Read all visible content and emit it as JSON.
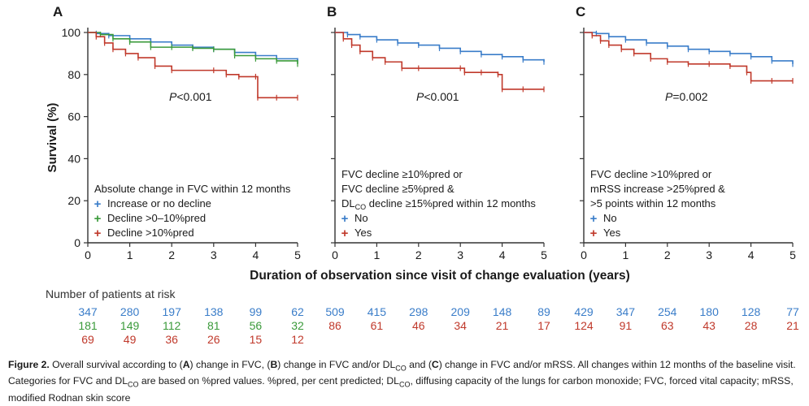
{
  "colors": {
    "blue": "#3a7dc9",
    "green": "#3a9a3a",
    "red": "#c0392b",
    "axis": "#333333"
  },
  "chart_data": [
    {
      "type": "line",
      "panel_label": "A",
      "ylabel": "Survival (%)",
      "xlim": [
        0,
        5
      ],
      "ylim": [
        0,
        100
      ],
      "x_ticks": [
        "0",
        "1",
        "2",
        "3",
        "4",
        "5"
      ],
      "y_ticks": [
        "0",
        "20",
        "40",
        "60",
        "80",
        "100"
      ],
      "grid": false,
      "annotation": {
        "italic": "P",
        "rest": "<0.001"
      },
      "legend_title_lines": [
        "Absolute change in FVC within 12 months"
      ],
      "legend_placement": "bottom-left",
      "series": [
        {
          "name": "Increase or no decline",
          "color": "#3a7dc9",
          "x": [
            0,
            0.2,
            0.5,
            1.0,
            1.5,
            2.0,
            2.5,
            3.0,
            3.5,
            4.0,
            4.5,
            5.0
          ],
          "y": [
            100,
            99.5,
            98.5,
            97,
            95.5,
            94,
            93,
            92,
            90.5,
            89,
            87.5,
            86.5
          ]
        },
        {
          "name": "Decline >0–10%pred",
          "color": "#3a9a3a",
          "x": [
            0,
            0.3,
            0.6,
            1.0,
            1.5,
            2.0,
            2.5,
            3.0,
            3.5,
            4.0,
            4.5,
            5.0
          ],
          "y": [
            100,
            99,
            97,
            95.5,
            93,
            93,
            92.5,
            92,
            89,
            87.5,
            86.5,
            85
          ]
        },
        {
          "name": "Decline >10%pred",
          "color": "#c0392b",
          "x": [
            0,
            0.2,
            0.4,
            0.6,
            0.9,
            1.2,
            1.6,
            2.0,
            3.0,
            3.3,
            3.6,
            4.0,
            4.05,
            4.5,
            5.0
          ],
          "y": [
            100,
            98,
            95,
            92,
            90,
            88,
            84,
            82,
            82,
            80,
            79,
            79,
            69,
            69,
            69
          ]
        }
      ]
    },
    {
      "type": "line",
      "panel_label": "B",
      "ylabel": "",
      "xlim": [
        0,
        5
      ],
      "ylim": [
        0,
        100
      ],
      "x_ticks": [
        "0",
        "1",
        "2",
        "3",
        "4",
        "5"
      ],
      "y_ticks": [],
      "grid": false,
      "annotation": {
        "italic": "P",
        "rest": "<0.001"
      },
      "legend_title_lines": [
        "FVC decline ≥10%pred or",
        "FVC decline ≥5%pred &",
        "DLCO decline ≥15%pred within 12 months"
      ],
      "legend_placement": "bottom-left",
      "series": [
        {
          "name": "No",
          "color": "#3a7dc9",
          "x": [
            0,
            0.3,
            0.6,
            1.0,
            1.5,
            2.0,
            2.5,
            3.0,
            3.5,
            4.0,
            4.5,
            5.0
          ],
          "y": [
            100,
            99,
            98,
            96.5,
            95,
            94,
            92.5,
            91,
            89.5,
            88.5,
            87,
            86
          ]
        },
        {
          "name": "Yes",
          "color": "#c0392b",
          "x": [
            0,
            0.2,
            0.4,
            0.6,
            0.9,
            1.2,
            1.6,
            2.0,
            3.0,
            3.1,
            3.5,
            3.9,
            4.0,
            4.5,
            5.0
          ],
          "y": [
            100,
            97,
            94,
            91,
            88,
            86,
            83,
            83,
            83,
            81,
            81,
            80,
            73,
            73,
            73
          ]
        }
      ]
    },
    {
      "type": "line",
      "panel_label": "C",
      "ylabel": "",
      "xlim": [
        0,
        5
      ],
      "ylim": [
        0,
        100
      ],
      "x_ticks": [
        "0",
        "1",
        "2",
        "3",
        "4",
        "5"
      ],
      "y_ticks": [],
      "grid": false,
      "annotation": {
        "italic": "P",
        "rest": "=0.002"
      },
      "legend_title_lines": [
        "FVC decline >10%pred or",
        "mRSS increase >25%pred &",
        ">5 points within 12 months"
      ],
      "legend_placement": "bottom-left",
      "series": [
        {
          "name": "No",
          "color": "#3a7dc9",
          "x": [
            0,
            0.3,
            0.6,
            1.0,
            1.5,
            2.0,
            2.5,
            3.0,
            3.5,
            4.0,
            4.5,
            5.0
          ],
          "y": [
            100,
            99.5,
            98,
            96.5,
            95,
            93.5,
            92,
            91,
            90,
            88.5,
            86.5,
            85
          ]
        },
        {
          "name": "Yes",
          "color": "#c0392b",
          "x": [
            0,
            0.2,
            0.4,
            0.6,
            0.9,
            1.2,
            1.6,
            2.0,
            2.5,
            3.0,
            3.5,
            3.9,
            4.0,
            4.5,
            5.0
          ],
          "y": [
            100,
            98.5,
            96,
            94,
            92,
            90,
            87.5,
            86,
            85,
            85,
            84,
            81,
            77,
            77,
            77
          ]
        }
      ]
    }
  ],
  "xlabel": "Duration of observation since visit of change evaluation (years)",
  "risk_table": {
    "title": "Number of patients at risk",
    "panels": [
      {
        "rows": [
          {
            "color": "#3a7dc9",
            "values": [
              "347",
              "280",
              "197",
              "138",
              "99",
              "62"
            ]
          },
          {
            "color": "#3a9a3a",
            "values": [
              "181",
              "149",
              "112",
              "81",
              "56",
              "32"
            ]
          },
          {
            "color": "#c0392b",
            "values": [
              "69",
              "49",
              "36",
              "26",
              "15",
              "12"
            ]
          }
        ]
      },
      {
        "rows": [
          {
            "color": "#3a7dc9",
            "values": [
              "509",
              "415",
              "298",
              "209",
              "148",
              "89"
            ]
          },
          {
            "color": "#c0392b",
            "values": [
              "86",
              "61",
              "46",
              "34",
              "21",
              "17"
            ]
          }
        ]
      },
      {
        "rows": [
          {
            "color": "#3a7dc9",
            "values": [
              "429",
              "347",
              "254",
              "180",
              "128",
              "77"
            ]
          },
          {
            "color": "#c0392b",
            "values": [
              "124",
              "91",
              "63",
              "43",
              "28",
              "21"
            ]
          }
        ]
      }
    ]
  },
  "caption": {
    "label": "Figure 2.",
    "t1": " Overall survival according to (",
    "a": "A",
    "t2": ") change in FVC, (",
    "b": "B",
    "t3": ") change in FVC and/or DL",
    "sub1": "CO",
    "t4": " and (",
    "c": "C",
    "t5": ") change in FVC and/or mRSS. All changes within 12 months of the baseline visit. Categories for FVC and DL",
    "sub2": "CO",
    "t6": " are based on %pred values. %pred, per cent predicted; DL",
    "sub3": "CO",
    "t7": ", diffusing capacity of the lungs for carbon monoxide; FVC, forced vital capacity; mRSS, modified Rodnan skin score"
  }
}
